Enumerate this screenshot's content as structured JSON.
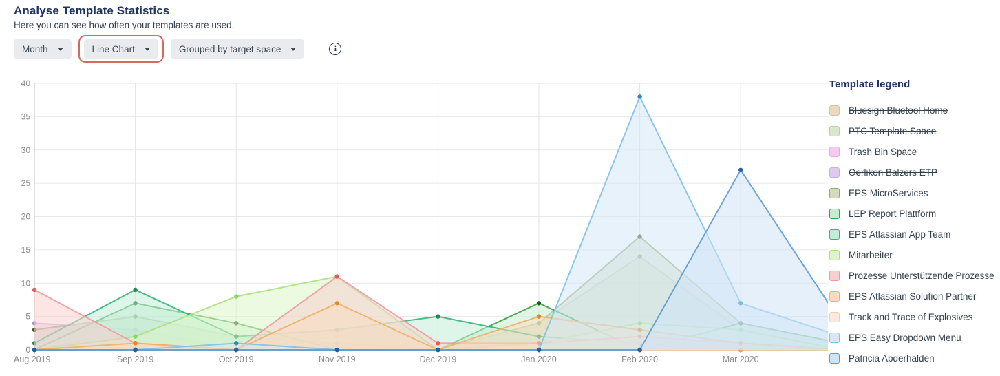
{
  "header": {
    "title": "Analyse Template Statistics",
    "subtitle": "Here you can see how often your templates are used."
  },
  "controls": {
    "period_dropdown": "Month",
    "chart_type_dropdown": "Line Chart",
    "grouping_dropdown": "Grouped by target space",
    "info_icon": "i",
    "highlight_color": "#d9695f"
  },
  "legend": {
    "title": "Template legend"
  },
  "chart_data": {
    "type": "line",
    "title": "",
    "xlabel": "",
    "ylabel": "",
    "ylim": [
      0,
      40
    ],
    "y_ticks": [
      0,
      5,
      10,
      15,
      20,
      25,
      30,
      35,
      40
    ],
    "grid": true,
    "legend_position": "right",
    "note": "lines continue past Mar 2020 and are clipped at the right edge of the plot",
    "categories": [
      "Aug 2019",
      "Sep 2019",
      "Oct 2019",
      "Nov 2019",
      "Dec 2019",
      "Jan 2020",
      "Feb 2020",
      "Mar 2020"
    ],
    "series": [
      {
        "name": "Bluesign Bluetool Home",
        "struck": true,
        "swatch": "#ead9bc",
        "line": "#dcc49a",
        "point": "#b08b62",
        "values": [
          0,
          0,
          0,
          2,
          0,
          0,
          0,
          0
        ],
        "edge_value": 0
      },
      {
        "name": "PTC Template Space",
        "struck": true,
        "swatch": "#d9e8cb",
        "line": "#b5d49e",
        "point": "#5a7a34",
        "values": [
          0,
          3,
          0,
          0,
          0,
          4,
          14,
          3
        ],
        "edge_value": 0
      },
      {
        "name": "Trash Bin Space",
        "struck": true,
        "swatch": "#f6c9ee",
        "line": "#eda8dd",
        "point": "#cf6fb8",
        "values": [
          0,
          0,
          0,
          0,
          0,
          0,
          0,
          0
        ],
        "edge_value": 0
      },
      {
        "name": "Oerlikon Balzers ETP",
        "struck": true,
        "swatch": "#dccbee",
        "line": "#c7aee3",
        "point": "#a487c9",
        "values": [
          4,
          3,
          0,
          0,
          0,
          0,
          0,
          0
        ],
        "edge_value": 0
      },
      {
        "name": "EPS MicroServices",
        "struck": false,
        "swatch": "#d2dabf",
        "line": "#97a86b",
        "point": "#3f511f",
        "values": [
          3,
          5,
          2,
          1,
          0,
          4,
          17,
          4
        ],
        "edge_value": 1
      },
      {
        "name": "LEP Report Plattform",
        "struck": false,
        "swatch": "#c8ecd0",
        "line": "#3e9e47",
        "point": "#14521d",
        "values": [
          0,
          7,
          4,
          0,
          0,
          7,
          0,
          4
        ],
        "edge_value": 1
      },
      {
        "name": "EPS Atlassian App Team",
        "struck": false,
        "swatch": "#c3ecd9",
        "line": "#33b679",
        "point": "#0e8a55",
        "values": [
          1,
          9,
          2,
          3,
          5,
          2,
          1,
          0
        ],
        "edge_value": 0
      },
      {
        "name": "Mitarbeiter",
        "struck": false,
        "swatch": "#ddf6c9",
        "line": "#a9e17e",
        "point": "#84d95a",
        "values": [
          0,
          2,
          8,
          11,
          0,
          1,
          4,
          3
        ],
        "edge_value": 0
      },
      {
        "name": "Prozesse Unterstützende Prozesse",
        "struck": false,
        "swatch": "#f8cfcf",
        "line": "#ef9a9a",
        "point": "#e25656",
        "values": [
          9,
          1,
          0,
          11,
          1,
          1,
          2,
          1
        ],
        "edge_value": 0
      },
      {
        "name": "EPS Atlassian Solution Partner",
        "struck": false,
        "swatch": "#f8ddbf",
        "line": "#f0b066",
        "point": "#e0861f",
        "values": [
          0,
          1,
          0,
          7,
          0,
          5,
          3,
          1
        ],
        "edge_value": 0
      },
      {
        "name": "Track and Trace of Explosives",
        "struck": false,
        "swatch": "#fbeadb",
        "line": "#f3d0ab",
        "point": "#e2a468",
        "values": [
          0,
          0,
          0,
          0,
          0,
          0,
          0,
          0
        ],
        "edge_value": 0
      },
      {
        "name": "EPS Easy Dropdown Menu",
        "struck": false,
        "swatch": "#d4e8f5",
        "line": "#7ec2e8",
        "point": "#2980b9",
        "values": [
          0,
          0,
          1,
          0,
          0,
          0,
          38,
          7
        ],
        "edge_value": 2
      },
      {
        "name": "Patricia Abderhalden",
        "struck": false,
        "swatch": "#cfe3f5",
        "line": "#5d9cd3",
        "point": "#1f5d9c",
        "values": [
          0,
          0,
          0,
          0,
          0,
          0,
          0,
          27
        ],
        "edge_value": 4
      }
    ]
  }
}
